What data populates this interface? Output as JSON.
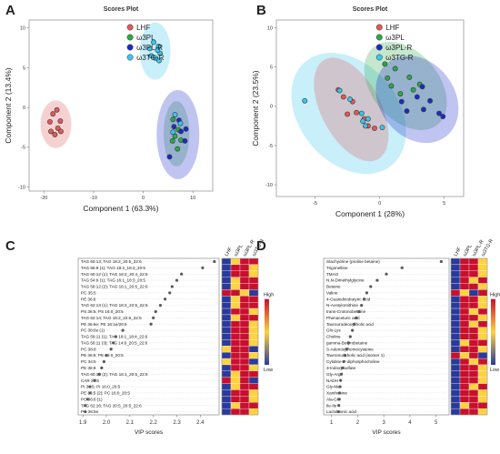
{
  "colors": {
    "LHF": "#e05a5a",
    "w3PL": "#2ea84a",
    "w3PL_R": "#1c2cc8",
    "w3TG_R": "#39c7ee",
    "heat_high": "#c8102e",
    "heat_mid": "#ffd23f",
    "heat_low": "#2a3a9a",
    "dot": "#5a5a5a"
  },
  "chart_data": [
    {
      "panel": "A",
      "type": "scatter",
      "title": "Scores Plot",
      "xlabel": "Component 1 (63.3%)",
      "ylabel": "Component 2 (13.4%)",
      "xlim": [
        -23,
        14
      ],
      "ylim": [
        -10.5,
        11
      ],
      "xticks": [
        -20,
        -10,
        0,
        10
      ],
      "yticks": [
        -10,
        -5,
        0,
        5,
        10
      ],
      "legend": "top-left",
      "series": [
        {
          "name": "LHF",
          "color_key": "LHF",
          "points": [
            [
              -18.2,
              -0.8
            ],
            [
              -17.4,
              -0.3
            ],
            [
              -18.8,
              -1.8
            ],
            [
              -16.7,
              -1.7
            ],
            [
              -17.2,
              -2.6
            ],
            [
              -18.6,
              -3.0
            ],
            [
              -17.8,
              -3.4
            ],
            [
              -16.6,
              -3.0
            ]
          ]
        },
        {
          "name": "ω3PL",
          "color_key": "w3PL",
          "points": [
            [
              6.0,
              -1.5
            ],
            [
              7.1,
              -2.8
            ],
            [
              6.4,
              -3.6
            ],
            [
              7.6,
              -4.1
            ],
            [
              6.9,
              -5.2
            ],
            [
              5.9,
              -4.2
            ]
          ]
        },
        {
          "name": "ω3PL-R",
          "color_key": "w3PL_R",
          "points": [
            [
              7.2,
              -1.6
            ],
            [
              6.2,
              -2.4
            ],
            [
              8.6,
              -2.7
            ],
            [
              8.4,
              -4.2
            ],
            [
              5.3,
              -6.2
            ],
            [
              7.6,
              -3.0
            ]
          ]
        },
        {
          "name": "ω3TG-R",
          "color_key": "w3TG_R",
          "points": [
            [
              1.3,
              7.4
            ],
            [
              2.1,
              8.2
            ],
            [
              3.1,
              7.7
            ],
            [
              3.4,
              6.8
            ],
            [
              2.5,
              6.2
            ],
            [
              1.6,
              6.5
            ],
            [
              2.9,
              7.2
            ],
            [
              3.2,
              5.9
            ],
            [
              6.4,
              -0.9
            ],
            [
              7.5,
              -2.0
            ],
            [
              6.0,
              -3.1
            ]
          ]
        }
      ],
      "ellipses": [
        {
          "color_key": "LHF",
          "cx": -17.6,
          "cy": -2.1,
          "rx": 3.1,
          "ry": 3.0,
          "angle": 0
        },
        {
          "color_key": "w3PL",
          "cx": 6.7,
          "cy": -3.3,
          "rx": 2.6,
          "ry": 4.1,
          "angle": 0
        },
        {
          "color_key": "w3PL_R",
          "cx": 7.0,
          "cy": -3.4,
          "rx": 4.3,
          "ry": 5.6,
          "angle": 0
        },
        {
          "color_key": "w3TG_R",
          "cx": 2.4,
          "cy": 7.1,
          "rx": 3.1,
          "ry": 3.6,
          "angle": 0
        }
      ]
    },
    {
      "panel": "B",
      "type": "scatter",
      "title": "Scores Plot",
      "xlabel": "Component 1 (28%)",
      "ylabel": "Component 2 (23.5%)",
      "xlim": [
        -8,
        6.5
      ],
      "ylim": [
        -11.5,
        11
      ],
      "xticks": [
        -5,
        0,
        5
      ],
      "yticks": [
        -10,
        -5,
        0,
        5,
        10
      ],
      "legend": "top-left",
      "series": [
        {
          "name": "LHF",
          "color_key": "LHF",
          "points": [
            [
              -3.2,
              2.1
            ],
            [
              -2.8,
              1.2
            ],
            [
              -2.1,
              0.6
            ],
            [
              -1.8,
              -0.8
            ],
            [
              -1.2,
              -1.6
            ],
            [
              -0.9,
              -2.5
            ],
            [
              -2.5,
              -1.0
            ],
            [
              -0.4,
              -2.8
            ]
          ]
        },
        {
          "name": "ω3PL",
          "color_key": "w3PL",
          "points": [
            [
              0.6,
              3.6
            ],
            [
              1.2,
              4.8
            ],
            [
              2.3,
              3.7
            ],
            [
              0.9,
              2.6
            ],
            [
              2.6,
              2.1
            ],
            [
              1.6,
              1.6
            ],
            [
              3.1,
              2.8
            ],
            [
              0.4,
              5.4
            ]
          ]
        },
        {
          "name": "ω3PL-R",
          "color_key": "w3PL_R",
          "points": [
            [
              1.7,
              0.6
            ],
            [
              2.9,
              1.2
            ],
            [
              3.4,
              -0.4
            ],
            [
              3.9,
              0.7
            ],
            [
              4.6,
              -0.9
            ],
            [
              4.9,
              -1.3
            ],
            [
              2.1,
              -0.6
            ],
            [
              3.3,
              2.5
            ]
          ]
        },
        {
          "name": "ω3TG-R",
          "color_key": "w3TG_R",
          "points": [
            [
              -5.8,
              0.7
            ],
            [
              -3.1,
              2.0
            ],
            [
              -2.3,
              0.9
            ],
            [
              -1.4,
              -0.9
            ],
            [
              -1.3,
              -1.9
            ],
            [
              -1.1,
              -2.5
            ],
            [
              -0.9,
              -1.6
            ],
            [
              0.2,
              -2.7
            ]
          ]
        }
      ],
      "ellipses": [
        {
          "color_key": "w3TG_R",
          "cx": -2.4,
          "cy": -0.9,
          "rx": 3.8,
          "ry": 8.6,
          "angle": -40
        },
        {
          "color_key": "LHF",
          "cx": -2.2,
          "cy": -0.4,
          "rx": 2.3,
          "ry": 7.2,
          "angle": -28
        },
        {
          "color_key": "w3PL",
          "cx": 2.0,
          "cy": 2.6,
          "rx": 2.6,
          "ry": 6.4,
          "angle": -40
        },
        {
          "color_key": "w3PL_R",
          "cx": 2.9,
          "cy": 0.9,
          "rx": 2.9,
          "ry": 6.0,
          "angle": -38
        }
      ]
    },
    {
      "panel": "C",
      "type": "scatter",
      "xlabel": "VIP scores",
      "xlim": [
        1.88,
        2.48
      ],
      "xticks": [
        1.9,
        2.0,
        2.1,
        2.2,
        2.3,
        2.4
      ],
      "heat_columns": [
        "LHF",
        "ω3PL",
        "ω3PL-R",
        "ω3TG-R"
      ],
      "features": [
        {
          "label": "TAG 60:13; TAG 18:2_20:5_22:6",
          "vip": 2.46,
          "heat": [
            0,
            1,
            3,
            2
          ]
        },
        {
          "label": "TAG 56:9 (1); TAG 18:2_18:2_20:5",
          "vip": 2.41,
          "heat": [
            0,
            2,
            3,
            1
          ]
        },
        {
          "label": "TAG 60:12 (1); TAG 18:2_20:4_22:6",
          "vip": 2.32,
          "heat": [
            0,
            2,
            3,
            1
          ]
        },
        {
          "label": "TAG 54:9 (1); TAG 16:1_18:3_20:5",
          "vip": 2.3,
          "heat": [
            0,
            1,
            3,
            2
          ]
        },
        {
          "label": "TAG 58:12 (2); TAG 16:1_20:5_22:6",
          "vip": 2.28,
          "heat": [
            0,
            1,
            3,
            2
          ]
        },
        {
          "label": "PC 35:5",
          "vip": 2.27,
          "heat": [
            3,
            2,
            1,
            0
          ]
        },
        {
          "label": "PE 36:6",
          "vip": 2.25,
          "heat": [
            0,
            1,
            3,
            2
          ]
        },
        {
          "label": "TAG 62:13 (1); TAG 18:2_22:5_22:6",
          "vip": 2.23,
          "heat": [
            0,
            1,
            3,
            2
          ]
        },
        {
          "label": "PS 36:5; PS 16:0_20:5",
          "vip": 2.21,
          "heat": [
            0,
            2,
            3,
            1
          ]
        },
        {
          "label": "TAG 62:14; TAG 18:2_22:6_22:6",
          "vip": 2.2,
          "heat": [
            0,
            1,
            3,
            2
          ]
        },
        {
          "label": "PE 36:6e; PE 16:1e/20:5",
          "vip": 2.19,
          "heat": [
            0,
            2,
            3,
            1
          ]
        },
        {
          "label": "PC 38:6e (1)",
          "vip": 2.07,
          "heat": [
            0,
            3,
            2,
            1
          ]
        },
        {
          "label": "TAG 58:11 (1); TAG 18:1_18:4_22:6",
          "vip": 2.04,
          "heat": [
            0,
            2,
            3,
            1
          ]
        },
        {
          "label": "TAG 56:11 (3); TAG 14:0_20:5_22:6",
          "vip": 2.03,
          "heat": [
            0,
            2,
            3,
            1
          ]
        },
        {
          "label": "PC 38:8",
          "vip": 2.02,
          "heat": [
            1,
            2,
            3,
            0
          ]
        },
        {
          "label": "PE 36:5; PE 16:0_20:5",
          "vip": 2.0,
          "heat": [
            0,
            3,
            2,
            1
          ]
        },
        {
          "label": "PC 34:5",
          "vip": 1.99,
          "heat": [
            1,
            3,
            2,
            0
          ]
        },
        {
          "label": "PE 38:8",
          "vip": 1.98,
          "heat": [
            0,
            3,
            2,
            1
          ]
        },
        {
          "label": "TAG 60:12 (2); TAG 18:1_20:5_22:6",
          "vip": 1.97,
          "heat": [
            0,
            1,
            3,
            2
          ]
        },
        {
          "label": "CAR 20:5",
          "vip": 1.95,
          "heat": [
            2,
            1,
            3,
            0
          ]
        },
        {
          "label": "PI 36:5; PI 16:0_20:5",
          "vip": 1.93,
          "heat": [
            0,
            1,
            3,
            2
          ]
        },
        {
          "label": "PE 36:5 (2); PC 16:0_20:5",
          "vip": 1.93,
          "heat": [
            0,
            3,
            2,
            1
          ]
        },
        {
          "label": "PC 36:6 (1)",
          "vip": 1.92,
          "heat": [
            0,
            3,
            2,
            1
          ]
        },
        {
          "label": "TAG 62:16; TAG 20:5_20:5_22:6",
          "vip": 1.91,
          "heat": [
            0,
            1,
            3,
            2
          ]
        },
        {
          "label": "PC 36:5e",
          "vip": 1.91,
          "heat": [
            0,
            3,
            2,
            1
          ]
        }
      ],
      "legend_high": "High",
      "legend_low": "Low"
    },
    {
      "panel": "D",
      "type": "scatter",
      "xlabel": "VIP scores",
      "xlim": [
        0.7,
        5.5
      ],
      "xticks": [
        1,
        2,
        3,
        4,
        5
      ],
      "heat_columns": [
        "LHF",
        "ω3PL",
        "ω3PL-R",
        "ω3TG-R"
      ],
      "features": [
        {
          "label": "Stachydrine (proline betaine)",
          "vip": 5.2,
          "heat": [
            0,
            2,
            3,
            1
          ]
        },
        {
          "label": "Trigonelline",
          "vip": 3.7,
          "heat": [
            0,
            2,
            3,
            1
          ]
        },
        {
          "label": "TMAO",
          "vip": 3.1,
          "heat": [
            0,
            3,
            2,
            1
          ]
        },
        {
          "label": "N,N-Dimethylglycine",
          "vip": 2.75,
          "heat": [
            0,
            3,
            1,
            2
          ]
        },
        {
          "label": "Betaine",
          "vip": 2.5,
          "heat": [
            0,
            3,
            2,
            1
          ]
        },
        {
          "label": "Valine",
          "vip": 2.35,
          "heat": [
            3,
            1,
            0,
            2
          ]
        },
        {
          "label": "4-Guanidinobutyric acid",
          "vip": 2.25,
          "heat": [
            0,
            2,
            3,
            1
          ]
        },
        {
          "label": "N-Acetylornithine",
          "vip": 2.15,
          "heat": [
            0,
            3,
            2,
            1
          ]
        },
        {
          "label": "trans-Crotonobetaine",
          "vip": 2.05,
          "heat": [
            0,
            3,
            1,
            2
          ]
        },
        {
          "label": "Phenaceturic acid",
          "vip": 1.95,
          "heat": [
            0,
            2,
            3,
            1
          ]
        },
        {
          "label": "Taurourodeoxycholic acid",
          "vip": 1.87,
          "heat": [
            0,
            3,
            1,
            2
          ]
        },
        {
          "label": "Gln-Lys",
          "vip": 1.8,
          "heat": [
            0,
            3,
            2,
            1
          ]
        },
        {
          "label": "Choline",
          "vip": 1.72,
          "heat": [
            0,
            2,
            3,
            1
          ]
        },
        {
          "label": "gamma-Butyrobetaine",
          "vip": 1.65,
          "heat": [
            0,
            1,
            3,
            2
          ]
        },
        {
          "label": "S-Adenosylhomocysteine",
          "vip": 1.58,
          "heat": [
            0,
            3,
            2,
            1
          ]
        },
        {
          "label": "Tauromuricholic acid (isomer 1)",
          "vip": 1.52,
          "heat": [
            3,
            1,
            2,
            0
          ]
        },
        {
          "label": "Cytidine 5'-diphosphocholine",
          "vip": 1.47,
          "heat": [
            0,
            3,
            1,
            2
          ]
        },
        {
          "label": "3-Indoxylsulfate",
          "vip": 1.42,
          "heat": [
            0,
            3,
            2,
            1
          ]
        },
        {
          "label": "Gly-Arg",
          "vip": 1.38,
          "heat": [
            0,
            2,
            3,
            1
          ]
        },
        {
          "label": "NADH",
          "vip": 1.35,
          "heat": [
            0,
            3,
            2,
            1
          ]
        },
        {
          "label": "Gly-Met",
          "vip": 1.33,
          "heat": [
            0,
            3,
            1,
            2
          ]
        },
        {
          "label": "Xanthosine",
          "vip": 1.31,
          "heat": [
            0,
            2,
            3,
            1
          ]
        },
        {
          "label": "Ala-Gln",
          "vip": 1.3,
          "heat": [
            0,
            3,
            2,
            1
          ]
        },
        {
          "label": "Ile-Ile",
          "vip": 1.28,
          "heat": [
            0,
            1,
            3,
            2
          ]
        },
        {
          "label": "Lactobionic acid",
          "vip": 1.27,
          "heat": [
            0,
            3,
            2,
            1
          ]
        }
      ],
      "legend_high": "High",
      "legend_low": "Low"
    }
  ],
  "panel_labels": [
    "A",
    "B",
    "C",
    "D"
  ]
}
